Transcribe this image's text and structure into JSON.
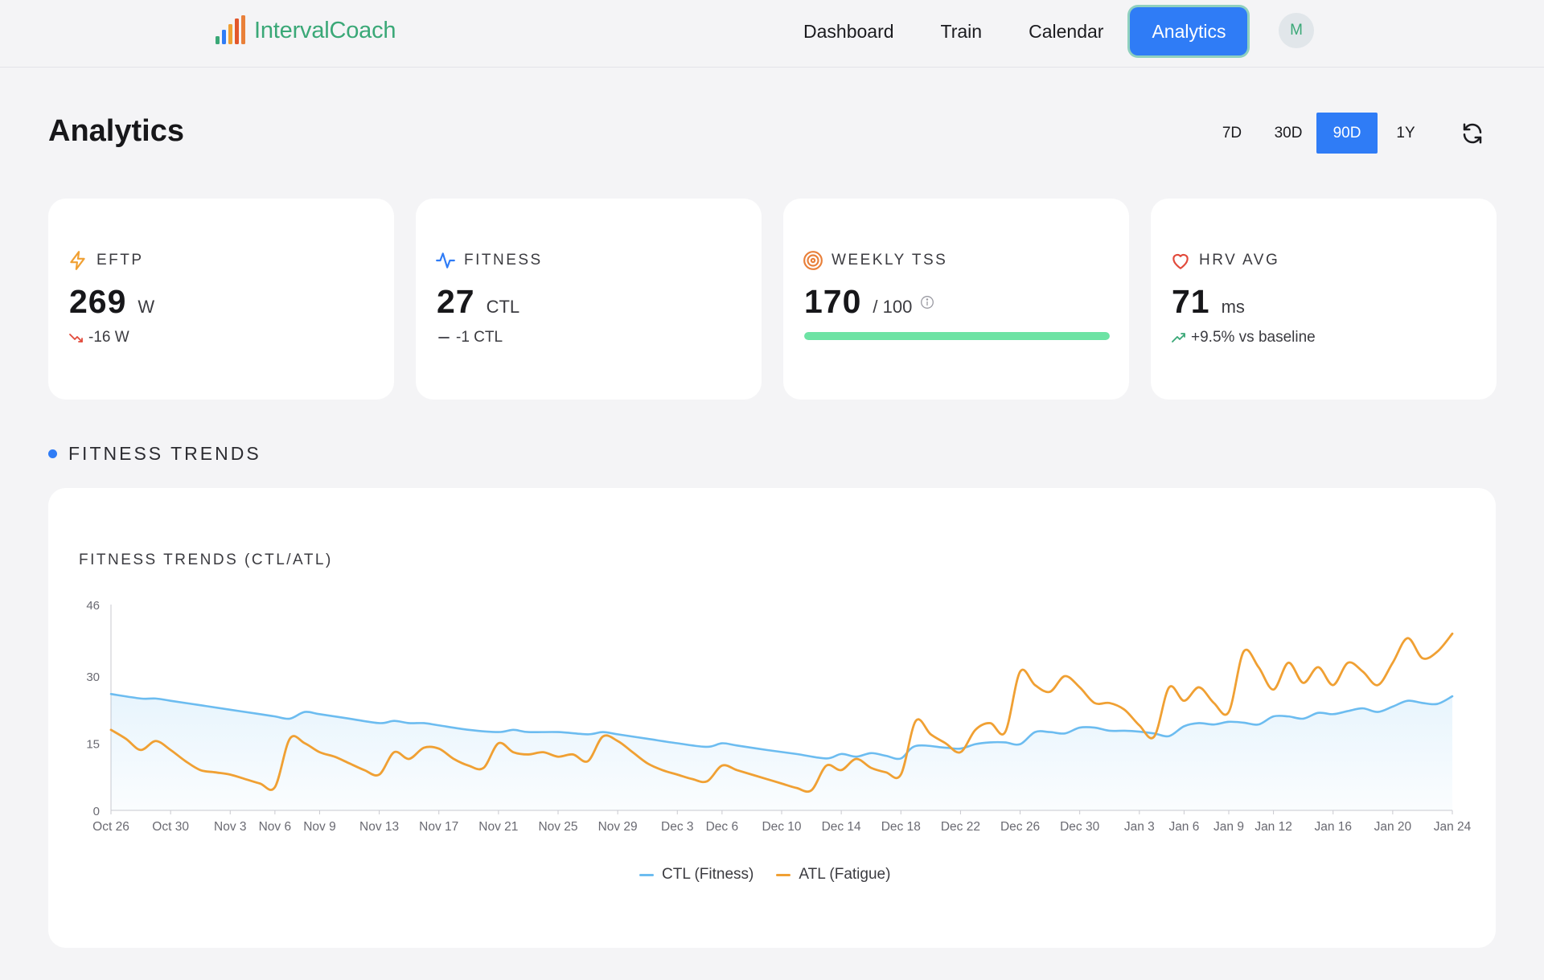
{
  "app": {
    "name": "IntervalCoach"
  },
  "nav": {
    "items": [
      {
        "label": "Dashboard",
        "active": false
      },
      {
        "label": "Train",
        "active": false
      },
      {
        "label": "Calendar",
        "active": false
      },
      {
        "label": "Analytics",
        "active": true
      }
    ],
    "avatar": "M"
  },
  "page": {
    "title": "Analytics"
  },
  "range": {
    "options": [
      "7D",
      "30D",
      "90D",
      "1Y"
    ],
    "selected": "90D"
  },
  "cards": {
    "eftp": {
      "label": "EFTP",
      "value": "269",
      "unit": "W",
      "delta": "-16 W",
      "trend": "down"
    },
    "fitness": {
      "label": "FITNESS",
      "value": "27",
      "unit": "CTL",
      "delta": "-1 CTL",
      "trend": "flat"
    },
    "tss": {
      "label": "WEEKLY TSS",
      "value": "170",
      "unit": "/ 100",
      "progress": 1.0
    },
    "hrv": {
      "label": "HRV AVG",
      "value": "71",
      "unit": "ms",
      "delta": "+9.5% vs baseline",
      "trend": "up"
    }
  },
  "section": {
    "title": "FITNESS TRENDS"
  },
  "colors": {
    "accent": "#2f7cf6",
    "ctl": "#6cbcf0",
    "atl": "#f0a033",
    "progress": "#6de3a4",
    "brand": "#3aa877"
  },
  "chart_data": {
    "type": "line",
    "title": "FITNESS TRENDS (CTL/ATL)",
    "ylim": [
      0,
      46
    ],
    "yticks": [
      0,
      15,
      30,
      46
    ],
    "xticks": [
      "Oct 26",
      "Oct 30",
      "Nov 3",
      "Nov 6",
      "Nov 9",
      "Nov 13",
      "Nov 17",
      "Nov 21",
      "Nov 25",
      "Nov 29",
      "Dec 3",
      "Dec 6",
      "Dec 10",
      "Dec 14",
      "Dec 18",
      "Dec 22",
      "Dec 26",
      "Dec 30",
      "Jan 3",
      "Jan 6",
      "Jan 9",
      "Jan 12",
      "Jan 16",
      "Jan 20",
      "Jan 24"
    ],
    "xtick_days": [
      0,
      4,
      8,
      11,
      14,
      18,
      22,
      26,
      30,
      34,
      38,
      41,
      45,
      49,
      53,
      57,
      61,
      65,
      69,
      72,
      75,
      78,
      82,
      86,
      90
    ],
    "series": [
      {
        "name": "CTL (Fitness)",
        "x": [
          0,
          2,
          3,
          4,
          6,
          8,
          10,
          11,
          12,
          13,
          14,
          16,
          18,
          19,
          20,
          21,
          22,
          24,
          26,
          27,
          28,
          30,
          32,
          33,
          34,
          36,
          38,
          40,
          41,
          42,
          44,
          46,
          48,
          49,
          50,
          51,
          52,
          53,
          54,
          56,
          57,
          58,
          59,
          60,
          61,
          62,
          63,
          64,
          65,
          66,
          67,
          68,
          69,
          70,
          71,
          72,
          73,
          74,
          75,
          76,
          77,
          78,
          79,
          80,
          81,
          82,
          83,
          84,
          85,
          86,
          87,
          88,
          89,
          90
        ],
        "y": [
          26,
          25,
          25,
          24.5,
          23.5,
          22.5,
          21.5,
          21,
          20.5,
          22,
          21.5,
          20.5,
          19.5,
          20,
          19.5,
          19.5,
          19,
          18,
          17.5,
          18,
          17.5,
          17.5,
          17,
          17.5,
          17,
          16,
          15,
          14.2,
          15,
          14.5,
          13.5,
          12.6,
          11.6,
          12.6,
          12,
          12.8,
          12.2,
          11.6,
          14.4,
          14,
          13.8,
          14.8,
          15.2,
          15.2,
          14.8,
          17.5,
          17.5,
          17.2,
          18.5,
          18.5,
          17.8,
          17.8,
          17.6,
          17.2,
          16.6,
          18.8,
          19.5,
          19.2,
          19.8,
          19.6,
          19.2,
          21,
          21,
          20.5,
          21.8,
          21.5,
          22.2,
          22.8,
          22,
          23.2,
          24.5,
          24,
          23.8,
          25.5
        ],
        "color": "#6cbcf0"
      },
      {
        "name": "ATL (Fatigue)",
        "x": [
          0,
          1,
          2,
          3,
          4,
          5,
          6,
          7,
          8,
          9,
          10,
          11,
          12,
          13,
          14,
          15,
          16,
          17,
          18,
          19,
          20,
          21,
          22,
          23,
          24,
          25,
          26,
          27,
          28,
          29,
          30,
          31,
          32,
          33,
          34,
          35,
          36,
          37,
          38,
          39,
          40,
          41,
          42,
          43,
          44,
          45,
          46,
          47,
          48,
          49,
          50,
          51,
          52,
          53,
          54,
          55,
          56,
          57,
          58,
          59,
          60,
          61,
          62,
          63,
          64,
          65,
          66,
          67,
          68,
          69,
          70,
          71,
          72,
          73,
          74,
          75,
          76,
          77,
          78,
          79,
          80,
          81,
          82,
          83,
          84,
          85,
          86,
          87,
          88,
          89,
          90
        ],
        "y": [
          18,
          16,
          13.5,
          15.5,
          13.5,
          11,
          9,
          8.5,
          8,
          7,
          6,
          5.2,
          16,
          15,
          13,
          12,
          10.5,
          9,
          8,
          13,
          11.5,
          14,
          13.8,
          11.5,
          10,
          9.5,
          15,
          13,
          12.5,
          13,
          12,
          12.5,
          11,
          16.5,
          15.5,
          13,
          10.5,
          9,
          8,
          7,
          6.5,
          10,
          9,
          8,
          7,
          6,
          5,
          4.5,
          10,
          9,
          11.5,
          9.5,
          8.5,
          8,
          20,
          17,
          15,
          13,
          18,
          19.5,
          17.5,
          31,
          28,
          26.5,
          30,
          27.5,
          24,
          24,
          22.5,
          19,
          16.5,
          27.5,
          24.5,
          27.5,
          24,
          22,
          35.5,
          32,
          27,
          33,
          28.5,
          32,
          28,
          33,
          31,
          28,
          33,
          38.5,
          34,
          35.5,
          39.5
        ],
        "color": "#f0a033"
      }
    ]
  }
}
